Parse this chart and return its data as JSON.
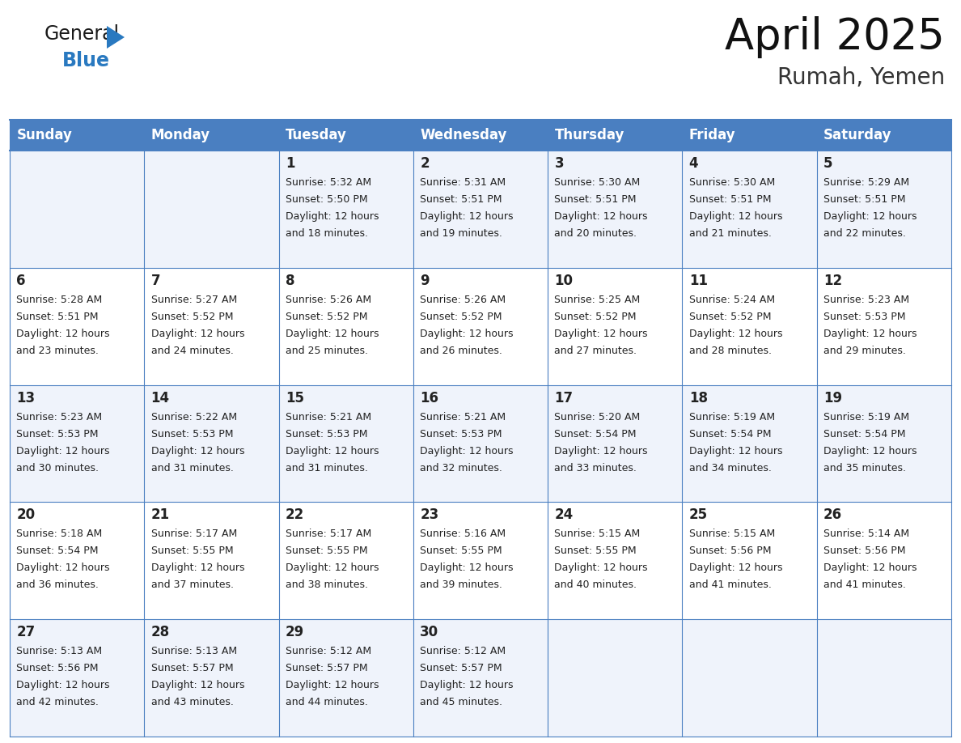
{
  "title": "April 2025",
  "subtitle": "Rumah, Yemen",
  "header_bg_color": "#4a7fc1",
  "header_text_color": "#FFFFFF",
  "header_font_size": 12,
  "day_names": [
    "Sunday",
    "Monday",
    "Tuesday",
    "Wednesday",
    "Thursday",
    "Friday",
    "Saturday"
  ],
  "title_fontsize": 38,
  "subtitle_fontsize": 20,
  "cell_text_color": "#222222",
  "day_num_fontsize": 12,
  "info_fontsize": 9,
  "row_colors": [
    "#eff3fb",
    "#ffffff",
    "#eff3fb",
    "#ffffff",
    "#eff3fb"
  ],
  "grid_color": "#4a7fc1",
  "logo_general_color": "#1a1a1a",
  "logo_blue_color": "#2979c0",
  "logo_triangle_color": "#2979c0",
  "days": [
    {
      "date": 1,
      "col": 2,
      "row": 0,
      "sunrise": "5:32 AM",
      "sunset": "5:50 PM",
      "dl_minutes": "18 minutes."
    },
    {
      "date": 2,
      "col": 3,
      "row": 0,
      "sunrise": "5:31 AM",
      "sunset": "5:51 PM",
      "dl_minutes": "19 minutes."
    },
    {
      "date": 3,
      "col": 4,
      "row": 0,
      "sunrise": "5:30 AM",
      "sunset": "5:51 PM",
      "dl_minutes": "20 minutes."
    },
    {
      "date": 4,
      "col": 5,
      "row": 0,
      "sunrise": "5:30 AM",
      "sunset": "5:51 PM",
      "dl_minutes": "21 minutes."
    },
    {
      "date": 5,
      "col": 6,
      "row": 0,
      "sunrise": "5:29 AM",
      "sunset": "5:51 PM",
      "dl_minutes": "22 minutes."
    },
    {
      "date": 6,
      "col": 0,
      "row": 1,
      "sunrise": "5:28 AM",
      "sunset": "5:51 PM",
      "dl_minutes": "23 minutes."
    },
    {
      "date": 7,
      "col": 1,
      "row": 1,
      "sunrise": "5:27 AM",
      "sunset": "5:52 PM",
      "dl_minutes": "24 minutes."
    },
    {
      "date": 8,
      "col": 2,
      "row": 1,
      "sunrise": "5:26 AM",
      "sunset": "5:52 PM",
      "dl_minutes": "25 minutes."
    },
    {
      "date": 9,
      "col": 3,
      "row": 1,
      "sunrise": "5:26 AM",
      "sunset": "5:52 PM",
      "dl_minutes": "26 minutes."
    },
    {
      "date": 10,
      "col": 4,
      "row": 1,
      "sunrise": "5:25 AM",
      "sunset": "5:52 PM",
      "dl_minutes": "27 minutes."
    },
    {
      "date": 11,
      "col": 5,
      "row": 1,
      "sunrise": "5:24 AM",
      "sunset": "5:52 PM",
      "dl_minutes": "28 minutes."
    },
    {
      "date": 12,
      "col": 6,
      "row": 1,
      "sunrise": "5:23 AM",
      "sunset": "5:53 PM",
      "dl_minutes": "29 minutes."
    },
    {
      "date": 13,
      "col": 0,
      "row": 2,
      "sunrise": "5:23 AM",
      "sunset": "5:53 PM",
      "dl_minutes": "30 minutes."
    },
    {
      "date": 14,
      "col": 1,
      "row": 2,
      "sunrise": "5:22 AM",
      "sunset": "5:53 PM",
      "dl_minutes": "31 minutes."
    },
    {
      "date": 15,
      "col": 2,
      "row": 2,
      "sunrise": "5:21 AM",
      "sunset": "5:53 PM",
      "dl_minutes": "31 minutes."
    },
    {
      "date": 16,
      "col": 3,
      "row": 2,
      "sunrise": "5:21 AM",
      "sunset": "5:53 PM",
      "dl_minutes": "32 minutes."
    },
    {
      "date": 17,
      "col": 4,
      "row": 2,
      "sunrise": "5:20 AM",
      "sunset": "5:54 PM",
      "dl_minutes": "33 minutes."
    },
    {
      "date": 18,
      "col": 5,
      "row": 2,
      "sunrise": "5:19 AM",
      "sunset": "5:54 PM",
      "dl_minutes": "34 minutes."
    },
    {
      "date": 19,
      "col": 6,
      "row": 2,
      "sunrise": "5:19 AM",
      "sunset": "5:54 PM",
      "dl_minutes": "35 minutes."
    },
    {
      "date": 20,
      "col": 0,
      "row": 3,
      "sunrise": "5:18 AM",
      "sunset": "5:54 PM",
      "dl_minutes": "36 minutes."
    },
    {
      "date": 21,
      "col": 1,
      "row": 3,
      "sunrise": "5:17 AM",
      "sunset": "5:55 PM",
      "dl_minutes": "37 minutes."
    },
    {
      "date": 22,
      "col": 2,
      "row": 3,
      "sunrise": "5:17 AM",
      "sunset": "5:55 PM",
      "dl_minutes": "38 minutes."
    },
    {
      "date": 23,
      "col": 3,
      "row": 3,
      "sunrise": "5:16 AM",
      "sunset": "5:55 PM",
      "dl_minutes": "39 minutes."
    },
    {
      "date": 24,
      "col": 4,
      "row": 3,
      "sunrise": "5:15 AM",
      "sunset": "5:55 PM",
      "dl_minutes": "40 minutes."
    },
    {
      "date": 25,
      "col": 5,
      "row": 3,
      "sunrise": "5:15 AM",
      "sunset": "5:56 PM",
      "dl_minutes": "41 minutes."
    },
    {
      "date": 26,
      "col": 6,
      "row": 3,
      "sunrise": "5:14 AM",
      "sunset": "5:56 PM",
      "dl_minutes": "41 minutes."
    },
    {
      "date": 27,
      "col": 0,
      "row": 4,
      "sunrise": "5:13 AM",
      "sunset": "5:56 PM",
      "dl_minutes": "42 minutes."
    },
    {
      "date": 28,
      "col": 1,
      "row": 4,
      "sunrise": "5:13 AM",
      "sunset": "5:57 PM",
      "dl_minutes": "43 minutes."
    },
    {
      "date": 29,
      "col": 2,
      "row": 4,
      "sunrise": "5:12 AM",
      "sunset": "5:57 PM",
      "dl_minutes": "44 minutes."
    },
    {
      "date": 30,
      "col": 3,
      "row": 4,
      "sunrise": "5:12 AM",
      "sunset": "5:57 PM",
      "dl_minutes": "45 minutes."
    }
  ]
}
